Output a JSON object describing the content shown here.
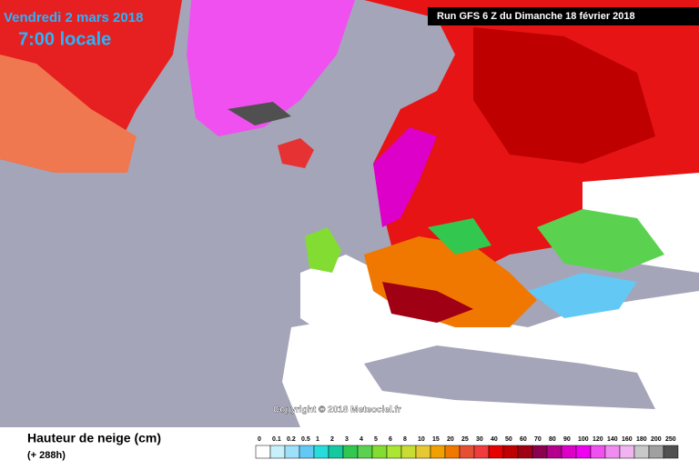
{
  "header": {
    "date": "Vendredi 2 mars 2018",
    "time": "7:00 locale",
    "run": "Run GFS 6 Z du Dimanche 18 février 2018"
  },
  "copyright": "Copyright © 2018 Meteociel.fr",
  "legend": {
    "title": "Hauteur de neige (cm)",
    "subtitle": "(+ 288h)",
    "items": [
      {
        "label": "0",
        "color": "#ffffff"
      },
      {
        "label": "0.1",
        "color": "#c8f0fa"
      },
      {
        "label": "0.2",
        "color": "#9ee0fa"
      },
      {
        "label": "0.5",
        "color": "#64c8f5"
      },
      {
        "label": "1",
        "color": "#28dcdc"
      },
      {
        "label": "2",
        "color": "#14c8a0"
      },
      {
        "label": "3",
        "color": "#32c850"
      },
      {
        "label": "4",
        "color": "#5ad250"
      },
      {
        "label": "5",
        "color": "#82dc32"
      },
      {
        "label": "6",
        "color": "#aae632"
      },
      {
        "label": "8",
        "color": "#c8dc32"
      },
      {
        "label": "10",
        "color": "#e6c832"
      },
      {
        "label": "15",
        "color": "#f0a000"
      },
      {
        "label": "20",
        "color": "#f07800"
      },
      {
        "label": "25",
        "color": "#e65032"
      },
      {
        "label": "30",
        "color": "#f03c3c"
      },
      {
        "label": "40",
        "color": "#e60000"
      },
      {
        "label": "50",
        "color": "#be0000"
      },
      {
        "label": "60",
        "color": "#a00014"
      },
      {
        "label": "70",
        "color": "#8c0050"
      },
      {
        "label": "80",
        "color": "#b4008c"
      },
      {
        "label": "90",
        "color": "#dc00c8"
      },
      {
        "label": "100",
        "color": "#f000f0"
      },
      {
        "label": "120",
        "color": "#f050f0"
      },
      {
        "label": "140",
        "color": "#f08cf0"
      },
      {
        "label": "160",
        "color": "#f0b4f0"
      },
      {
        "label": "180",
        "color": "#c8c8c8"
      },
      {
        "label": "200",
        "color": "#a0a0a0"
      },
      {
        "label": "250",
        "color": "#505050"
      }
    ]
  }
}
